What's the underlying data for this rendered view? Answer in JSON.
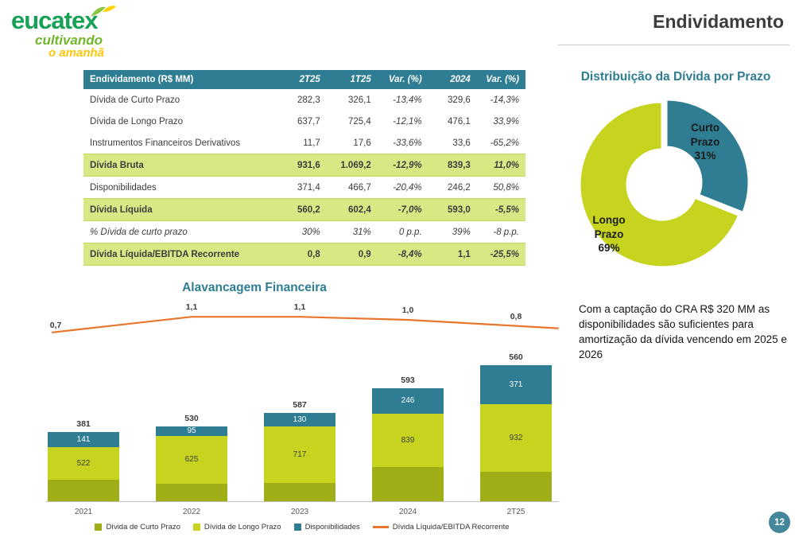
{
  "page": {
    "title": "Endividamento",
    "page_number": "12"
  },
  "logo": {
    "brand": "eucatex",
    "tagline1": "cultivando",
    "tagline2": "o amanhã"
  },
  "table": {
    "title_col": "Endividamento (R$ MM)",
    "columns": [
      "2T25",
      "1T25",
      "Var. (%)",
      "2024",
      "Var. (%)"
    ],
    "rows": [
      {
        "label": "Dívida de Curto Prazo",
        "values": [
          "282,3",
          "326,1",
          "-13,4%",
          "329,6",
          "-14,3%"
        ],
        "style": "normal"
      },
      {
        "label": "Dívida de Longo Prazo",
        "values": [
          "637,7",
          "725,4",
          "-12,1%",
          "476,1",
          "33,9%"
        ],
        "style": "normal"
      },
      {
        "label": "Instrumentos Financeiros Derivativos",
        "values": [
          "11,7",
          "17,6",
          "-33,6%",
          "33,6",
          "-65,2%"
        ],
        "style": "normal"
      },
      {
        "label": "Dívida Bruta",
        "values": [
          "931,6",
          "1.069,2",
          "-12,9%",
          "839,3",
          "11,0%"
        ],
        "style": "highlight"
      },
      {
        "label": "Disponibilidades",
        "values": [
          "371,4",
          "466,7",
          "-20,4%",
          "246,2",
          "50,8%"
        ],
        "style": "normal"
      },
      {
        "label": "Dívida Líquida",
        "values": [
          "560,2",
          "602,4",
          "-7,0%",
          "593,0",
          "-5,5%"
        ],
        "style": "highlight"
      },
      {
        "label": "% Dívida de curto prazo",
        "values": [
          "30%",
          "31%",
          "0 p.p.",
          "39%",
          "-8 p.p."
        ],
        "style": "italic"
      },
      {
        "label": "Dívida Líquida/EBITDA Recorrente",
        "values": [
          "0,8",
          "0,9",
          "-8,4%",
          "1,1",
          "-25,5%"
        ],
        "style": "highlight"
      }
    ]
  },
  "note": {
    "text": "Com a captação do CRA R$ 320 MM as disponibilidades são suficientes para amortização da dívida vencendo em  2025 e 2026"
  },
  "legend": [
    {
      "label": "Dívida de Curto Prazo",
      "swatch": "square",
      "color_key": "olive"
    },
    {
      "label": "Dívida de Longo Prazo",
      "swatch": "square",
      "color_key": "lime"
    },
    {
      "label": "Disponibilidades",
      "swatch": "square",
      "color_key": "teal"
    },
    {
      "label": "Dívida Líquida/EBITDA Recorrente",
      "swatch": "line",
      "color_key": "orange"
    }
  ],
  "colors": {
    "teal": "#2e7d92",
    "lime": "#c6d420",
    "olive": "#9fae17",
    "orange": "#e8762c",
    "highlight": "#d9e884"
  },
  "chart_data": [
    {
      "type": "pie",
      "donut": true,
      "title": "Distribuição da Dívida por Prazo",
      "labels": [
        "Curto Prazo",
        "Longo Prazo"
      ],
      "values": [
        31,
        69
      ],
      "unit": "%",
      "colors": [
        "#2e7d92",
        "#c6d420"
      ],
      "legend_position": "labels-inside"
    },
    {
      "type": "bar",
      "title": "Alavancagem Financeira",
      "categories": [
        "2021",
        "2022",
        "2023",
        "2024",
        "2T25"
      ],
      "series": [
        {
          "name": "Dívida Bruta (rótulo na faixa verde-clara)",
          "values": [
            522,
            625,
            717,
            839,
            932
          ]
        },
        {
          "name": "Disponibilidades (faixa azul-petróleo)",
          "values": [
            141,
            95,
            130,
            246,
            371
          ]
        },
        {
          "name": "Dívida Líquida (rótulo acima da barra)",
          "values": [
            381,
            530,
            587,
            593,
            560
          ]
        },
        {
          "name": "Dívida Líquida/EBITDA Recorrente (linha)",
          "values": [
            0.7,
            1.1,
            1.1,
            1.0,
            0.8
          ],
          "labels": [
            "0,7",
            "1,1",
            "1,1",
            "1,0",
            "0,8"
          ]
        }
      ],
      "stack_note": "barras empilhadas: Dívida de Curto Prazo (oliva, sem rótulo) + Dívida de Longo Prazo (verde-claro) + Disponibilidades (azul-petróleo)",
      "curto_prazo_est": [
        205,
        170,
        175,
        330,
        282
      ],
      "grid": false,
      "legend_position": "bottom"
    }
  ]
}
